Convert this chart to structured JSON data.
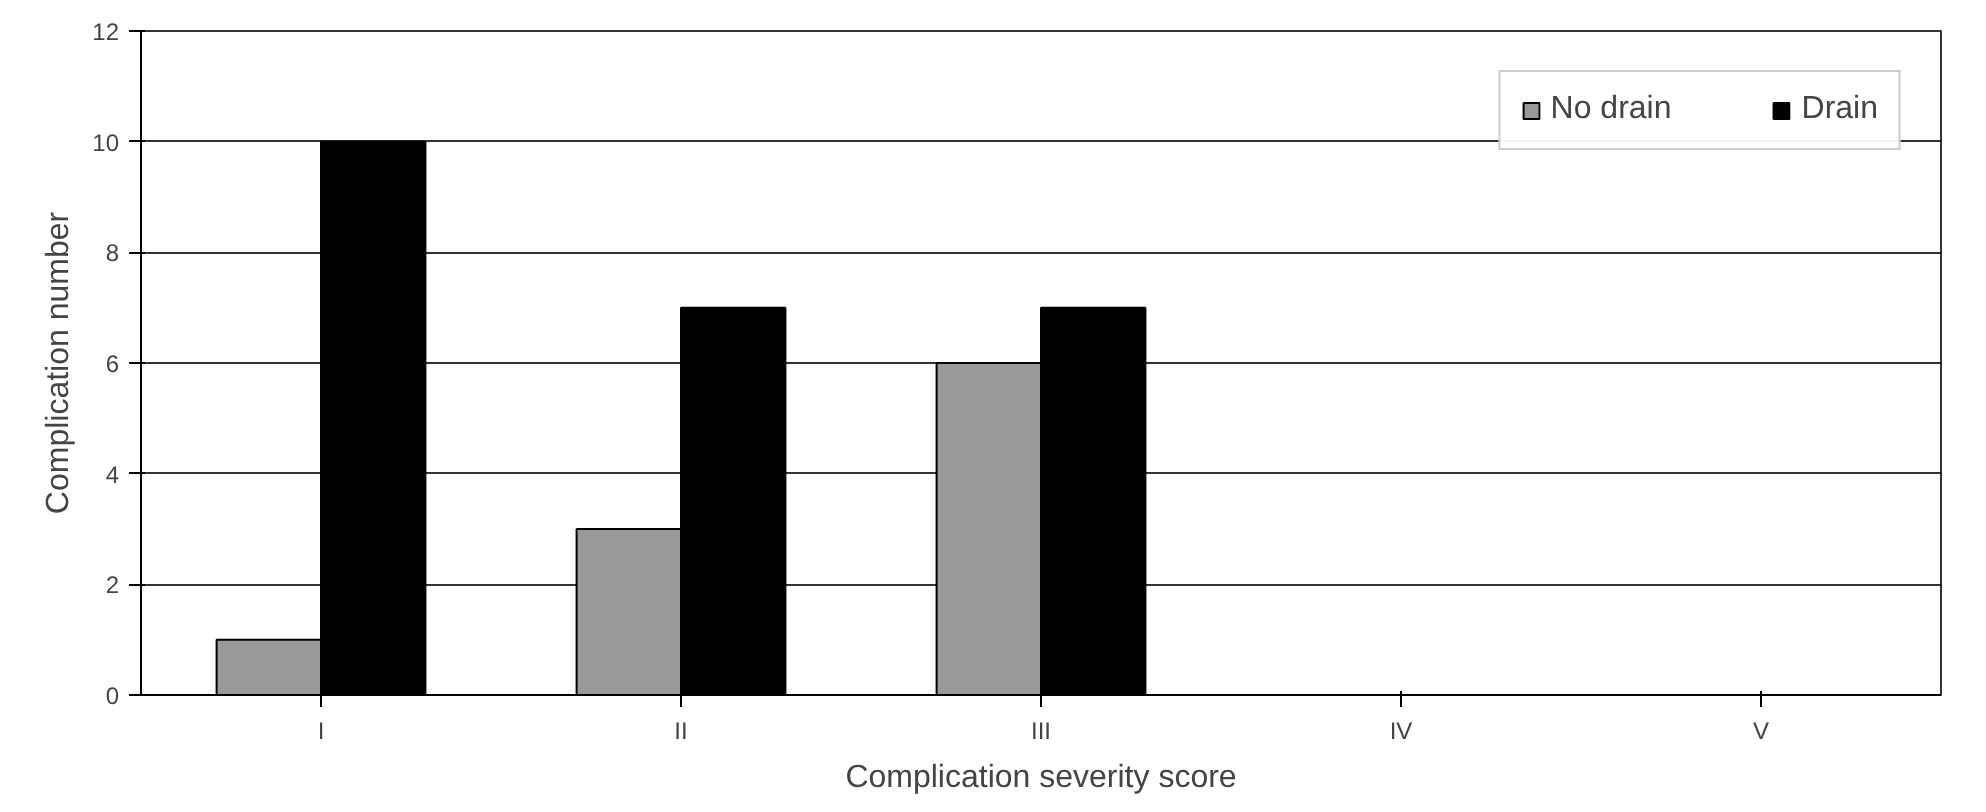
{
  "chart_data": {
    "type": "bar",
    "xlabel": "Complication severity score",
    "ylabel": "Complication number",
    "categories": [
      "I",
      "II",
      "III",
      "IV",
      "V"
    ],
    "series": [
      {
        "name": "No drain",
        "color": "#999999",
        "values": [
          1,
          3,
          6,
          0,
          0
        ]
      },
      {
        "name": "Drain",
        "color": "#000000",
        "values": [
          10,
          7,
          7,
          0,
          0
        ]
      }
    ],
    "ylim": [
      0,
      12
    ],
    "yticks": [
      0,
      2,
      4,
      6,
      8,
      10,
      12
    ],
    "grid": "y",
    "legend": "top right"
  }
}
